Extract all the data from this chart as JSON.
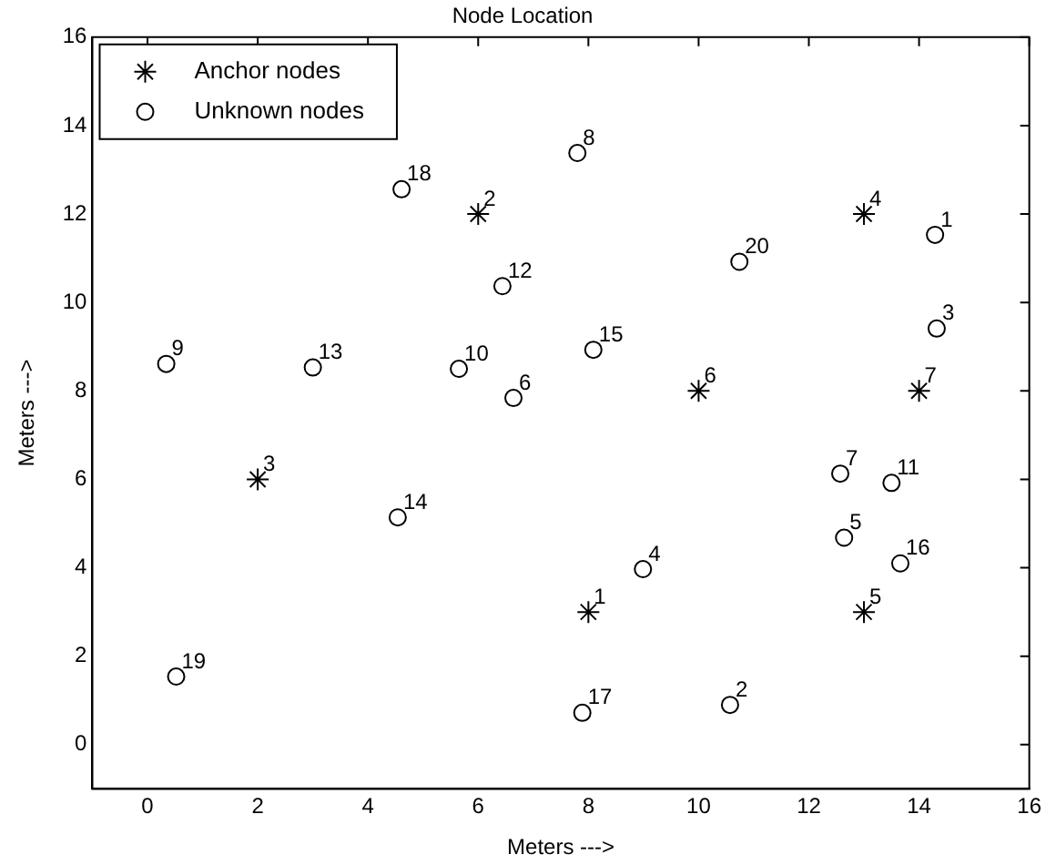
{
  "chart_data": {
    "type": "scatter",
    "title": "Node Location",
    "xlabel": "Meters --->",
    "ylabel": "Meters --->",
    "xlim": [
      -1,
      16
    ],
    "xticks": [
      0,
      2,
      4,
      6,
      8,
      10,
      12,
      14,
      16
    ],
    "ylim": [
      -1,
      16
    ],
    "yticks": [
      0,
      2,
      4,
      6,
      8,
      10,
      12,
      14,
      16
    ],
    "grid": false,
    "legend": "top left",
    "series": [
      {
        "name": "Anchor nodes",
        "color": "#000000",
        "marker": "cross",
        "x": [
          8,
          6,
          2,
          13,
          13,
          10,
          14
        ],
        "values": [
          3,
          12,
          6,
          12,
          3,
          8,
          8
        ]
      },
      {
        "name": "Unknown nodes",
        "color": "#000000",
        "marker": "circle",
        "x": [
          14.29,
          10.57,
          14.32,
          8.99,
          12.64,
          6.64,
          12.57,
          7.8,
          0.34,
          5.65,
          13.5,
          6.44,
          3.0,
          4.54,
          8.09,
          13.66,
          7.89,
          4.61,
          0.52,
          10.74
        ],
        "values": [
          11.53,
          0.9,
          9.41,
          3.97,
          4.68,
          7.84,
          6.13,
          13.38,
          8.61,
          8.5,
          5.92,
          10.37,
          8.53,
          5.14,
          8.93,
          4.1,
          0.72,
          12.56,
          1.54,
          10.92
        ]
      }
    ],
    "annotations": [
      {
        "text": "1",
        "x": 8,
        "y": 3
      },
      {
        "text": "2",
        "x": 6,
        "y": 12
      },
      {
        "text": "3",
        "x": 2,
        "y": 6
      },
      {
        "text": "4",
        "x": 13,
        "y": 12
      },
      {
        "text": "5",
        "x": 13,
        "y": 3
      },
      {
        "text": "6",
        "x": 10,
        "y": 8
      },
      {
        "text": "7",
        "x": 14,
        "y": 8
      },
      {
        "text": "1",
        "x": 14.29,
        "y": 11.53
      },
      {
        "text": "2",
        "x": 10.57,
        "y": 0.9
      },
      {
        "text": "3",
        "x": 14.32,
        "y": 9.41
      },
      {
        "text": "4",
        "x": 8.99,
        "y": 3.97
      },
      {
        "text": "5",
        "x": 12.64,
        "y": 4.68
      },
      {
        "text": "6",
        "x": 6.64,
        "y": 7.84
      },
      {
        "text": "7",
        "x": 12.57,
        "y": 6.13
      },
      {
        "text": "8",
        "x": 7.8,
        "y": 13.38
      },
      {
        "text": "9",
        "x": 0.34,
        "y": 8.61
      },
      {
        "text": "10",
        "x": 5.65,
        "y": 8.5
      },
      {
        "text": "11",
        "x": 13.5,
        "y": 5.92
      },
      {
        "text": "12",
        "x": 6.44,
        "y": 10.37
      },
      {
        "text": "13",
        "x": 3.0,
        "y": 8.53
      },
      {
        "text": "14",
        "x": 4.54,
        "y": 5.14
      },
      {
        "text": "15",
        "x": 8.09,
        "y": 8.93
      },
      {
        "text": "16",
        "x": 13.66,
        "y": 4.1
      },
      {
        "text": "17",
        "x": 7.89,
        "y": 0.72
      },
      {
        "text": "18",
        "x": 4.61,
        "y": 12.56
      },
      {
        "text": "19",
        "x": 0.52,
        "y": 1.54
      },
      {
        "text": "20",
        "x": 10.74,
        "y": 10.92
      }
    ]
  }
}
